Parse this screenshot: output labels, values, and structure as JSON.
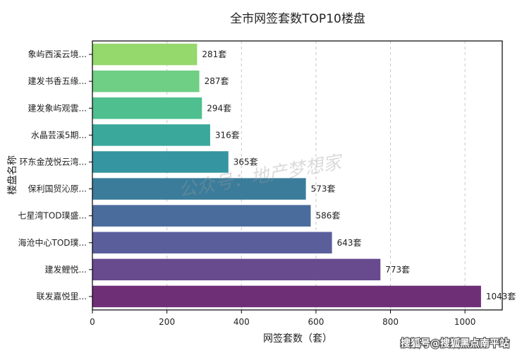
{
  "chart_data": {
    "type": "bar",
    "orientation": "horizontal",
    "title": "全市网签套数TOP10楼盘",
    "xlabel": "网签套数（套）",
    "ylabel": "楼盘名称",
    "categories": [
      "象屿西溪云境...",
      "建发书香五缘...",
      "建发象屿观雲...",
      "水晶芸溪5期...",
      "环东金茂悦云湾...",
      "保利国贸沁原...",
      "七星湾TOD璞盛...",
      "海沧中心TOD璞...",
      "建发鲤悦...",
      "联发嘉悦里..."
    ],
    "values": [
      281,
      287,
      294,
      316,
      365,
      573,
      586,
      643,
      773,
      1043
    ],
    "value_suffix": "套",
    "xlim": [
      0,
      1100
    ],
    "xticks": [
      0,
      200,
      400,
      600,
      800,
      1000
    ],
    "grid": "vertical dashed",
    "colors": [
      "#95d86c",
      "#6fcf84",
      "#4fbf8f",
      "#3aa89a",
      "#3595a0",
      "#3b7c9b",
      "#4a6c9c",
      "#5a5f9c",
      "#684a8f",
      "#6e2f77"
    ]
  },
  "watermark": "公众号：地产梦想家",
  "footer_mark": "搜狐号@搜狐黑点南平站"
}
